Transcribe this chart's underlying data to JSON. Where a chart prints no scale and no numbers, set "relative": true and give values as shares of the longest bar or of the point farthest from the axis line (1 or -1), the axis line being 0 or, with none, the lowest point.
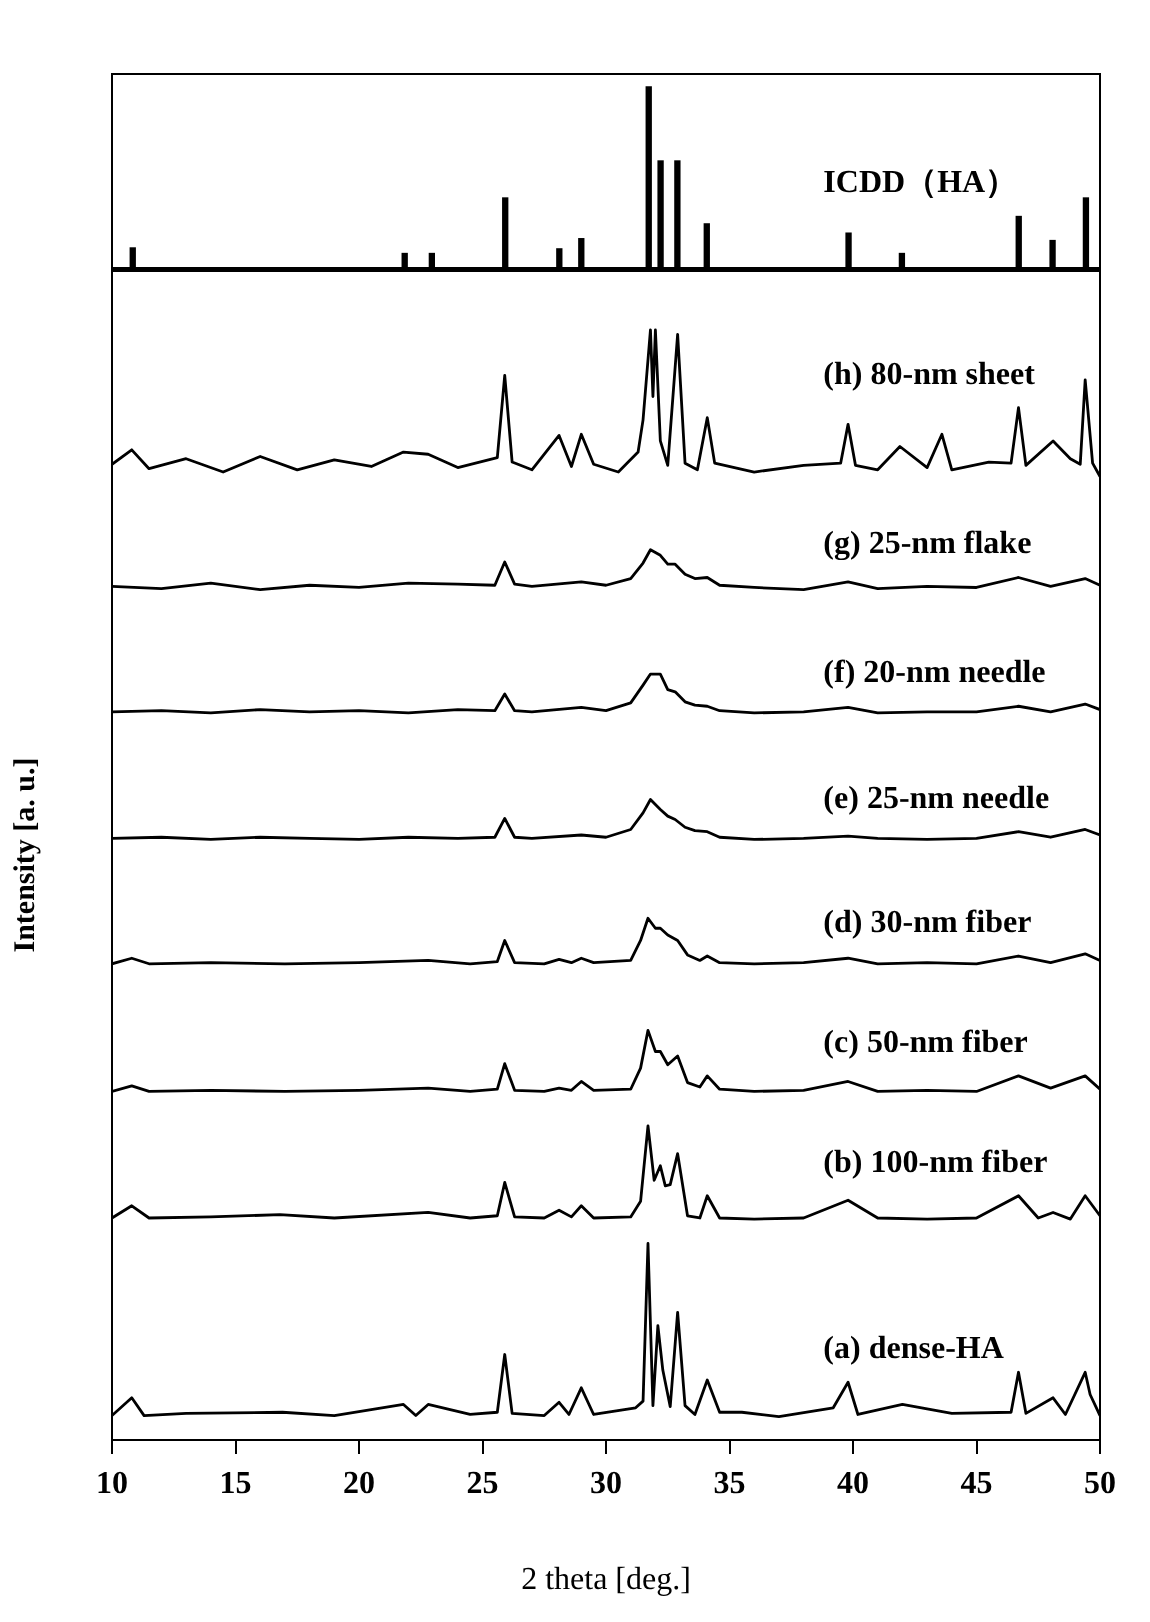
{
  "chart_data": [
    {
      "type": "bar",
      "relative": true,
      "tick_labels": false,
      "xlim": [
        10,
        50
      ],
      "x": [
        10.84,
        21.85,
        22.95,
        25.92,
        28.11,
        29.0,
        31.73,
        32.21,
        32.89,
        34.08,
        39.82,
        41.98,
        46.71,
        48.08,
        49.43
      ],
      "series": [
        {
          "name": "ICDD（HA）",
          "color": "#000000",
          "values": [
            0.13,
            0.1,
            0.1,
            0.4,
            0.125,
            0.18,
            1.0,
            0.6,
            0.6,
            0.26,
            0.21,
            0.1,
            0.3,
            0.17,
            0.4
          ]
        }
      ]
    },
    {
      "type": "line",
      "relative": true,
      "tick_labels": "x",
      "xlim": [
        10,
        50
      ],
      "xticks": [
        10,
        15,
        20,
        25,
        30,
        35,
        40,
        45,
        50
      ],
      "xlabel": "2 theta [deg.]",
      "ylabel": "Intensity [a. u.]",
      "marker": "none",
      "line_style": "solid",
      "series": [
        {
          "name": "(h) 80-nm sheet",
          "color": "#000000",
          "x": [
            10,
            10.8,
            11.5,
            13,
            14.5,
            16,
            17.5,
            19,
            20.5,
            21.8,
            22.8,
            24,
            25.6,
            25.9,
            26.2,
            27,
            28.1,
            28.6,
            29,
            29.5,
            30.5,
            31.3,
            31.5,
            31.8,
            31.9,
            32.0,
            32.2,
            32.5,
            32.9,
            33.2,
            33.7,
            34.1,
            34.4,
            36,
            38,
            39.5,
            39.8,
            40.1,
            41,
            41.9,
            43,
            43.6,
            44,
            45.5,
            46.4,
            46.7,
            47,
            48.1,
            48.8,
            49.2,
            49.4,
            49.7,
            50
          ],
          "values": [
            0.879,
            0.892,
            0.875,
            0.884,
            0.872,
            0.886,
            0.874,
            0.883,
            0.877,
            0.89,
            0.888,
            0.876,
            0.885,
            0.959,
            0.881,
            0.874,
            0.905,
            0.877,
            0.906,
            0.879,
            0.872,
            0.89,
            0.919,
            1.0,
            0.94,
            1.0,
            0.9,
            0.878,
            0.996,
            0.88,
            0.874,
            0.921,
            0.88,
            0.872,
            0.878,
            0.88,
            0.915,
            0.878,
            0.874,
            0.895,
            0.876,
            0.906,
            0.874,
            0.881,
            0.88,
            0.93,
            0.878,
            0.9,
            0.884,
            0.879,
            0.955,
            0.88,
            0.868
          ]
        },
        {
          "name": "(g) 25-nm flake",
          "color": "#000000",
          "x": [
            10,
            12,
            14,
            16,
            18,
            20,
            22,
            24,
            25.5,
            25.9,
            26.3,
            27,
            29,
            30,
            31,
            31.5,
            31.8,
            32.2,
            32.5,
            32.8,
            33.2,
            33.6,
            34.1,
            34.6,
            36,
            38,
            39.8,
            41,
            43,
            45,
            46.7,
            48,
            49.4,
            50
          ],
          "values": [
            0.769,
            0.767,
            0.772,
            0.766,
            0.77,
            0.768,
            0.772,
            0.771,
            0.77,
            0.791,
            0.771,
            0.769,
            0.773,
            0.77,
            0.776,
            0.79,
            0.802,
            0.797,
            0.789,
            0.789,
            0.78,
            0.776,
            0.777,
            0.77,
            0.768,
            0.766,
            0.773,
            0.767,
            0.769,
            0.768,
            0.777,
            0.769,
            0.776,
            0.77
          ]
        },
        {
          "name": "(f) 20-nm needle",
          "color": "#000000",
          "x": [
            10,
            12,
            14,
            16,
            18,
            20,
            22,
            24,
            25.5,
            25.9,
            26.3,
            27,
            29,
            30,
            31,
            31.5,
            31.8,
            32.2,
            32.5,
            32.8,
            33.2,
            33.6,
            34.1,
            34.6,
            36,
            38,
            39.8,
            41,
            43,
            45,
            46.7,
            48,
            49.4,
            50
          ],
          "values": [
            0.656,
            0.657,
            0.655,
            0.658,
            0.656,
            0.657,
            0.655,
            0.658,
            0.657,
            0.672,
            0.657,
            0.656,
            0.66,
            0.657,
            0.664,
            0.68,
            0.69,
            0.69,
            0.676,
            0.674,
            0.665,
            0.662,
            0.661,
            0.657,
            0.655,
            0.656,
            0.66,
            0.655,
            0.656,
            0.656,
            0.661,
            0.656,
            0.663,
            0.658
          ]
        },
        {
          "name": "(e) 25-nm needle",
          "color": "#000000",
          "x": [
            10,
            12,
            14,
            16,
            18,
            20,
            22,
            24,
            25.5,
            25.9,
            26.3,
            27,
            29,
            30,
            31,
            31.5,
            31.8,
            32.2,
            32.5,
            32.8,
            33.2,
            33.6,
            34.1,
            34.6,
            36,
            38,
            39.8,
            41,
            43,
            45,
            46.7,
            48,
            49.4,
            50
          ],
          "values": [
            0.542,
            0.543,
            0.541,
            0.543,
            0.542,
            0.541,
            0.543,
            0.542,
            0.543,
            0.56,
            0.543,
            0.542,
            0.545,
            0.543,
            0.55,
            0.565,
            0.577,
            0.568,
            0.562,
            0.559,
            0.552,
            0.549,
            0.548,
            0.543,
            0.541,
            0.542,
            0.544,
            0.542,
            0.541,
            0.542,
            0.548,
            0.543,
            0.55,
            0.545
          ]
        },
        {
          "name": "(d) 30-nm fiber",
          "color": "#000000",
          "x": [
            10,
            10.8,
            11.5,
            14,
            17,
            20,
            22.8,
            24.5,
            25.6,
            25.9,
            26.3,
            27.5,
            28.1,
            28.6,
            29,
            29.5,
            31,
            31.4,
            31.7,
            32.0,
            32.2,
            32.5,
            32.9,
            33.3,
            33.8,
            34.1,
            34.6,
            36,
            38,
            39.8,
            41,
            43,
            45,
            46.7,
            48,
            49.4,
            50
          ],
          "values": [
            0.429,
            0.434,
            0.429,
            0.43,
            0.429,
            0.43,
            0.432,
            0.429,
            0.431,
            0.45,
            0.43,
            0.429,
            0.433,
            0.43,
            0.434,
            0.43,
            0.432,
            0.45,
            0.47,
            0.461,
            0.461,
            0.455,
            0.45,
            0.437,
            0.432,
            0.436,
            0.43,
            0.429,
            0.43,
            0.434,
            0.429,
            0.43,
            0.429,
            0.436,
            0.43,
            0.438,
            0.432
          ]
        },
        {
          "name": "(c) 50-nm fiber",
          "color": "#000000",
          "x": [
            10,
            10.8,
            11.5,
            14,
            17,
            20,
            22.8,
            24.5,
            25.6,
            25.9,
            26.3,
            27.5,
            28.1,
            28.6,
            29,
            29.5,
            31,
            31.4,
            31.7,
            32.0,
            32.2,
            32.5,
            32.9,
            33.3,
            33.8,
            34.1,
            34.6,
            36,
            38,
            39.8,
            41,
            43,
            45,
            46.7,
            48,
            49.4,
            50
          ],
          "values": [
            0.314,
            0.319,
            0.314,
            0.315,
            0.314,
            0.315,
            0.317,
            0.314,
            0.316,
            0.339,
            0.315,
            0.314,
            0.317,
            0.315,
            0.323,
            0.315,
            0.316,
            0.335,
            0.369,
            0.35,
            0.35,
            0.338,
            0.346,
            0.322,
            0.318,
            0.328,
            0.316,
            0.314,
            0.315,
            0.323,
            0.314,
            0.315,
            0.314,
            0.328,
            0.317,
            0.328,
            0.316
          ]
        },
        {
          "name": "(b) 100-nm fiber",
          "color": "#000000",
          "x": [
            10,
            10.8,
            11.5,
            14,
            16.8,
            19,
            22.8,
            24.5,
            25.6,
            25.9,
            26.3,
            27.5,
            28.1,
            28.6,
            29,
            29.5,
            31,
            31.4,
            31.7,
            31.95,
            32.2,
            32.4,
            32.6,
            32.9,
            33.3,
            33.8,
            34.1,
            34.6,
            36,
            38,
            39.8,
            41,
            43,
            45,
            46.7,
            47.5,
            48.1,
            48.8,
            49.4,
            50
          ],
          "values": [
            0.2,
            0.211,
            0.2,
            0.201,
            0.203,
            0.2,
            0.205,
            0.2,
            0.202,
            0.232,
            0.201,
            0.2,
            0.207,
            0.201,
            0.211,
            0.2,
            0.201,
            0.215,
            0.283,
            0.234,
            0.247,
            0.229,
            0.23,
            0.258,
            0.202,
            0.2,
            0.22,
            0.2,
            0.199,
            0.2,
            0.216,
            0.2,
            0.199,
            0.2,
            0.22,
            0.2,
            0.205,
            0.199,
            0.22,
            0.202
          ]
        },
        {
          "name": "(a) dense-HA",
          "color": "#000000",
          "x": [
            10,
            10.8,
            11.3,
            13,
            16.9,
            19,
            21.8,
            22.3,
            22.8,
            24.5,
            25.6,
            25.9,
            26.2,
            27.5,
            28.1,
            28.5,
            29,
            29.5,
            31.2,
            31.5,
            31.7,
            31.9,
            32.1,
            32.3,
            32.6,
            32.9,
            33.2,
            33.6,
            34.1,
            34.6,
            35.5,
            37,
            39.2,
            39.8,
            40.2,
            42,
            44,
            46.4,
            46.7,
            47,
            48.1,
            48.6,
            49.4,
            49.6,
            50
          ],
          "values": [
            0.022,
            0.038,
            0.022,
            0.024,
            0.025,
            0.022,
            0.032,
            0.022,
            0.032,
            0.023,
            0.025,
            0.077,
            0.024,
            0.022,
            0.034,
            0.023,
            0.047,
            0.023,
            0.029,
            0.035,
            0.177,
            0.031,
            0.103,
            0.063,
            0.03,
            0.115,
            0.031,
            0.023,
            0.054,
            0.025,
            0.025,
            0.021,
            0.029,
            0.052,
            0.023,
            0.032,
            0.024,
            0.025,
            0.061,
            0.024,
            0.038,
            0.023,
            0.061,
            0.041,
            0.022
          ]
        }
      ]
    }
  ]
}
